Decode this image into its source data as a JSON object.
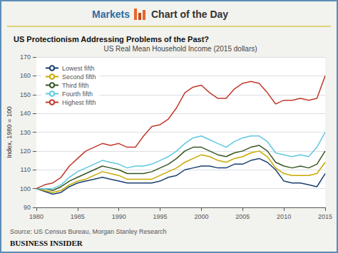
{
  "chart_data": {
    "type": "line",
    "title": "US Protectionism Addressing Problems of the Past?",
    "subtitle": "US Real Mean Household Income (2015 dollars)",
    "y_label": "Index, 1980 = 100",
    "annotations": [
      "Markets",
      "Chart of the Day",
      "Source: US Census Bureau, Morgan Stanley Research",
      "BUSINESS INSIDER"
    ],
    "x": [
      1980,
      1981,
      1982,
      1983,
      1984,
      1985,
      1986,
      1987,
      1988,
      1989,
      1990,
      1991,
      1992,
      1993,
      1994,
      1995,
      1996,
      1997,
      1998,
      1999,
      2000,
      2001,
      2002,
      2003,
      2004,
      2005,
      2006,
      2007,
      2008,
      2009,
      2010,
      2011,
      2012,
      2013,
      2014,
      2015
    ],
    "series": [
      {
        "name": "Lowest fifth",
        "color": "#1a3f6f",
        "values": [
          100,
          98.5,
          97,
          98,
          101,
          103,
          104,
          105,
          106,
          105,
          104,
          103,
          103,
          103,
          103,
          104,
          106,
          107,
          110,
          111,
          112,
          112,
          111,
          111,
          113,
          113,
          115,
          116,
          114,
          110,
          104,
          103,
          103,
          102,
          101,
          108
        ]
      },
      {
        "name": "Second fifth",
        "color": "#c8a800",
        "values": [
          100,
          99,
          98,
          99,
          102,
          104,
          105,
          107,
          109,
          108,
          107,
          105,
          105,
          105,
          105,
          107,
          109,
          111,
          114,
          116,
          118,
          117,
          115,
          114,
          116,
          117,
          119,
          120,
          117,
          111,
          108,
          107,
          107,
          107,
          108,
          114
        ]
      },
      {
        "name": "Third fifth",
        "color": "#375623",
        "values": [
          100,
          100,
          99,
          101,
          104,
          106,
          108,
          110,
          112,
          111,
          110,
          108,
          108,
          108,
          109,
          111,
          113,
          116,
          120,
          122,
          122,
          120,
          118,
          117,
          119,
          120,
          122,
          123,
          120,
          114,
          112,
          111,
          112,
          111,
          113,
          120
        ]
      },
      {
        "name": "Fourth fifth",
        "color": "#5ec8e0",
        "values": [
          100,
          100,
          100,
          102,
          106,
          109,
          111,
          113,
          115,
          114,
          113,
          111,
          112,
          112,
          113,
          115,
          117,
          120,
          124,
          127,
          128,
          126,
          124,
          122,
          125,
          127,
          128,
          128,
          125,
          119,
          118,
          117,
          118,
          117,
          122,
          130
        ]
      },
      {
        "name": "Highest fifth",
        "color": "#c0392b",
        "values": [
          100,
          102,
          103,
          106,
          112,
          116,
          120,
          122,
          124,
          123,
          124,
          122,
          122,
          128,
          133,
          134,
          137,
          143,
          151,
          154,
          155,
          151,
          148,
          148,
          153,
          156,
          157,
          156,
          151,
          145,
          147,
          147,
          148,
          147,
          148,
          160
        ]
      }
    ],
    "xlim": [
      1980,
      2015
    ],
    "xticks": [
      1980,
      1985,
      1990,
      1995,
      2000,
      2005,
      2010,
      2015
    ],
    "ylim": [
      90,
      170
    ],
    "yticks": [
      90,
      100,
      110,
      120,
      130,
      140,
      150,
      160,
      170
    ],
    "grid": true,
    "legend": "upper left"
  }
}
